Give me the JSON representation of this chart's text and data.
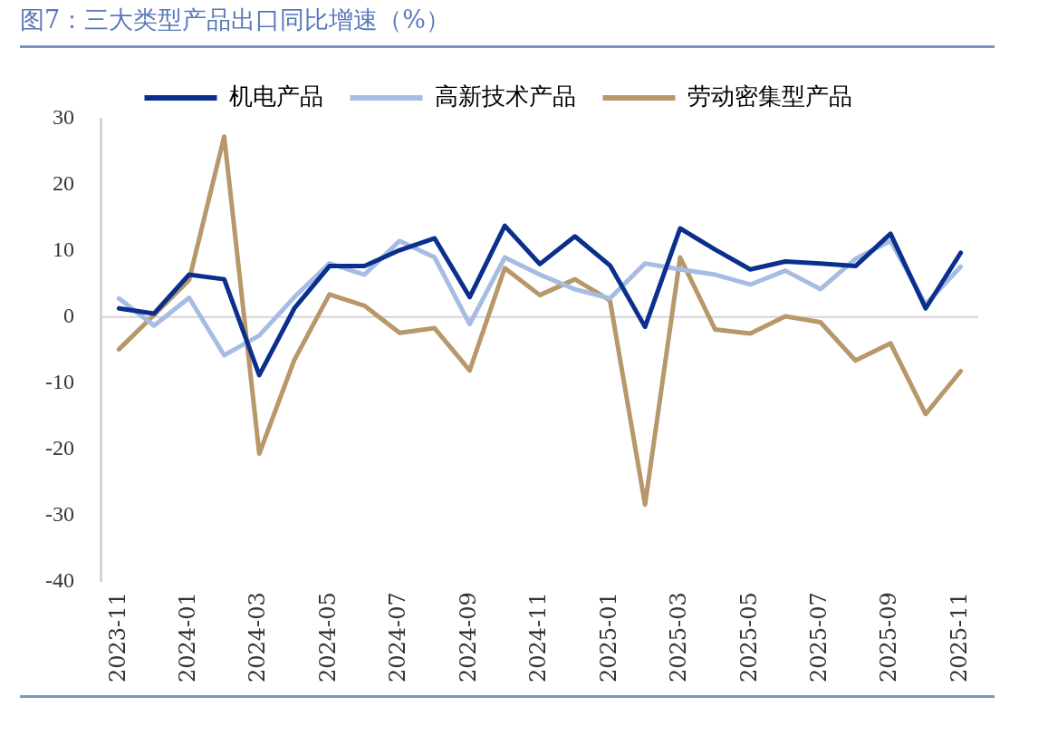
{
  "chart_data": {
    "type": "line",
    "title": "图7：三大类型产品出口同比增速（%）",
    "categories": [
      "2023-11",
      null,
      "2024-01",
      null,
      "2024-03",
      null,
      "2024-05",
      null,
      "2024-07",
      null,
      "2024-09",
      null,
      "2024-11",
      null,
      "2025-01",
      null,
      "2025-03",
      null,
      "2025-05",
      null,
      "2025-07",
      null,
      "2025-09",
      null,
      "2025-11"
    ],
    "series": [
      {
        "name": "机电产品",
        "color": "#0a2f8c",
        "values": [
          1.3,
          0.5,
          6.4,
          5.7,
          -8.8,
          1.3,
          7.7,
          7.7,
          10.1,
          11.9,
          3.0,
          13.8,
          8.0,
          12.2,
          7.8,
          -1.5,
          13.4,
          10.2,
          7.2,
          8.4,
          8.1,
          7.7,
          12.6,
          1.3,
          9.7
        ]
      },
      {
        "name": "高新技术产品",
        "color": "#a6bce3",
        "values": [
          2.8,
          -1.3,
          2.9,
          -5.8,
          -2.8,
          3.0,
          8.1,
          6.4,
          11.5,
          9.0,
          -1.1,
          9.0,
          6.4,
          4.2,
          2.8,
          8.1,
          7.2,
          6.4,
          4.9,
          7.0,
          4.2,
          8.8,
          11.5,
          1.9,
          7.6
        ]
      },
      {
        "name": "劳动密集型产品",
        "color": "#b8976a",
        "values": [
          -4.9,
          0.3,
          5.6,
          27.3,
          -20.7,
          -6.5,
          3.4,
          1.7,
          -2.4,
          -1.7,
          -8.1,
          7.4,
          3.3,
          5.7,
          2.5,
          -28.4,
          9.0,
          -1.9,
          -2.5,
          0.1,
          -0.8,
          -6.6,
          -4.0,
          -14.7,
          -8.2
        ]
      }
    ],
    "ylim": [
      -40,
      30
    ],
    "yticks": [
      -40,
      -30,
      -20,
      -10,
      0,
      10,
      20,
      30
    ],
    "ref_lines": [
      {
        "axis": "y",
        "value": 0,
        "color": "#d4d4d4"
      }
    ],
    "legend": "top",
    "marker": "none",
    "line_style": "solid"
  }
}
